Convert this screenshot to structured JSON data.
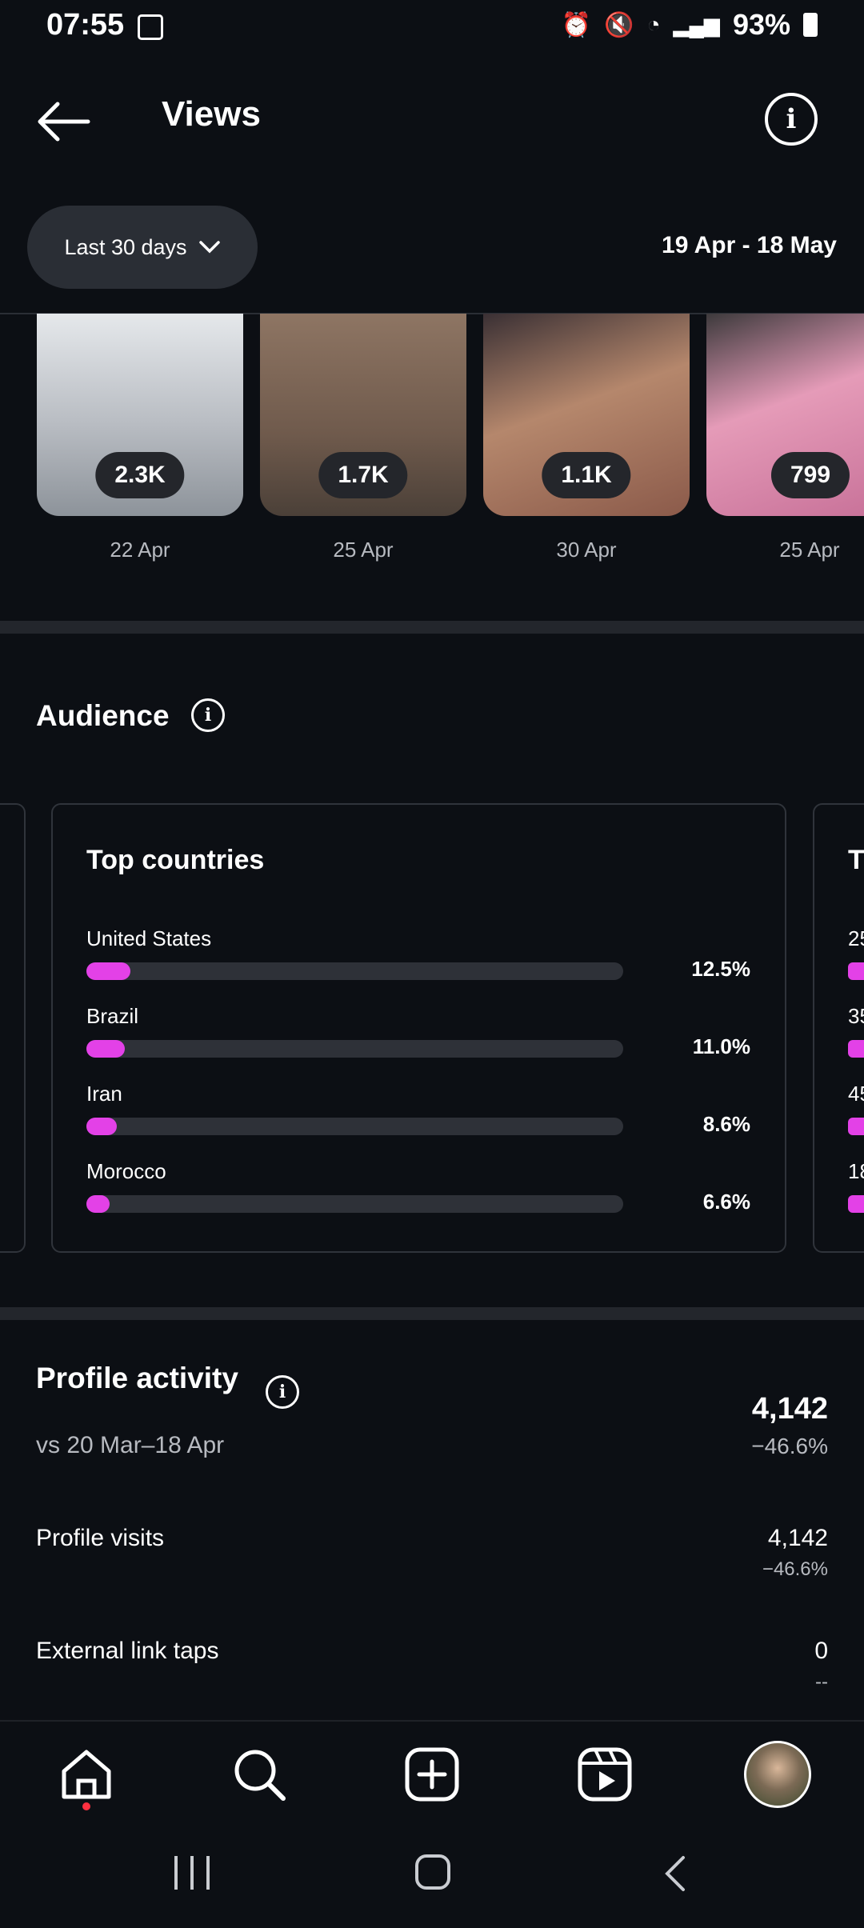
{
  "status_bar": {
    "time": "07:55",
    "battery": "93%"
  },
  "header": {
    "title": "Views"
  },
  "filter": {
    "range_label": "Last 30 days",
    "date_range": "19 Apr - 18 May"
  },
  "top_content": [
    {
      "views": "2.3K",
      "date": "22 Apr",
      "bg": "#cfd3d8"
    },
    {
      "views": "1.7K",
      "date": "25 Apr",
      "bg": "#7a6556"
    },
    {
      "views": "1.1K",
      "date": "30 Apr",
      "bg": "#a6765f"
    },
    {
      "views": "799",
      "date": "25 Apr",
      "bg": "#d889a8"
    }
  ],
  "audience": {
    "title": "Audience",
    "top_countries": {
      "title": "Top countries",
      "items": [
        {
          "name": "United States",
          "percent": "12.5%",
          "value": 12.5
        },
        {
          "name": "Brazil",
          "percent": "11.0%",
          "value": 11.0
        },
        {
          "name": "Iran",
          "percent": "8.6%",
          "value": 8.6
        },
        {
          "name": "Morocco",
          "percent": "6.6%",
          "value": 6.6
        }
      ]
    },
    "next_card_peek": {
      "title": "T",
      "values": [
        "25",
        "35",
        "45",
        "18"
      ]
    }
  },
  "profile_activity": {
    "title": "Profile activity",
    "comparison": "vs 20 Mar–18 Apr",
    "total": "4,142",
    "total_change": "−46.6%",
    "rows": [
      {
        "label": "Profile visits",
        "value": "4,142",
        "change": "−46.6%"
      },
      {
        "label": "External link taps",
        "value": "0",
        "change": "--"
      }
    ]
  },
  "colors": {
    "accent": "#e341e7",
    "background": "#0c0f14",
    "track": "#2e3138"
  }
}
